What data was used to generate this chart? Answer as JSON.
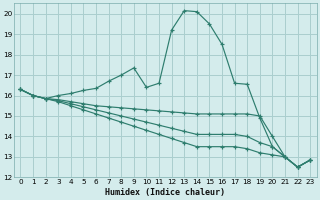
{
  "xlabel": "Humidex (Indice chaleur)",
  "xlim": [
    -0.5,
    23.5
  ],
  "ylim": [
    12,
    20.5
  ],
  "yticks": [
    12,
    13,
    14,
    15,
    16,
    17,
    18,
    19,
    20
  ],
  "xticks": [
    0,
    1,
    2,
    3,
    4,
    5,
    6,
    7,
    8,
    9,
    10,
    11,
    12,
    13,
    14,
    15,
    16,
    17,
    18,
    19,
    20,
    21,
    22,
    23
  ],
  "bg_color": "#d4ecec",
  "grid_color": "#aacece",
  "line_color": "#2e7d6e",
  "line1_x": [
    0,
    1,
    2,
    3,
    4,
    5,
    6,
    7,
    8,
    9,
    10,
    11,
    12,
    13,
    14,
    15,
    16,
    17,
    18,
    19,
    20,
    21,
    22,
    23
  ],
  "line1_y": [
    16.3,
    16.0,
    15.85,
    16.0,
    16.1,
    16.25,
    16.35,
    16.7,
    17.0,
    17.35,
    16.4,
    16.6,
    19.2,
    20.15,
    20.1,
    19.5,
    18.5,
    16.6,
    16.55,
    14.9,
    13.5,
    13.0,
    12.5,
    12.85
  ],
  "line2_x": [
    0,
    1,
    2,
    3,
    4,
    5,
    6,
    7,
    8,
    9,
    10,
    11,
    12,
    13,
    14,
    15,
    16,
    17,
    18,
    19,
    20,
    21,
    22,
    23
  ],
  "line2_y": [
    16.3,
    16.0,
    15.85,
    15.8,
    15.7,
    15.6,
    15.5,
    15.45,
    15.4,
    15.35,
    15.3,
    15.25,
    15.2,
    15.15,
    15.1,
    15.1,
    15.1,
    15.1,
    15.1,
    15.0,
    14.0,
    13.0,
    12.5,
    12.85
  ],
  "line3_x": [
    0,
    1,
    2,
    3,
    4,
    5,
    6,
    7,
    8,
    9,
    10,
    11,
    12,
    13,
    14,
    15,
    16,
    17,
    18,
    19,
    20,
    21,
    22,
    23
  ],
  "line3_y": [
    16.3,
    16.0,
    15.85,
    15.75,
    15.6,
    15.45,
    15.3,
    15.15,
    15.0,
    14.85,
    14.7,
    14.55,
    14.4,
    14.25,
    14.1,
    14.1,
    14.1,
    14.1,
    14.0,
    13.7,
    13.5,
    13.0,
    12.5,
    12.85
  ],
  "line4_x": [
    0,
    1,
    2,
    3,
    4,
    5,
    6,
    7,
    8,
    9,
    10,
    11,
    12,
    13,
    14,
    15,
    16,
    17,
    18,
    19,
    20,
    21,
    22,
    23
  ],
  "line4_y": [
    16.3,
    16.0,
    15.85,
    15.7,
    15.5,
    15.3,
    15.1,
    14.9,
    14.7,
    14.5,
    14.3,
    14.1,
    13.9,
    13.7,
    13.5,
    13.5,
    13.5,
    13.5,
    13.4,
    13.2,
    13.1,
    13.0,
    12.5,
    12.85
  ]
}
